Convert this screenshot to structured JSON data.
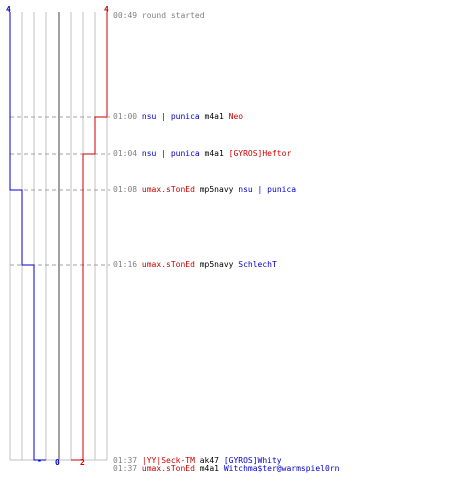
{
  "colors": {
    "team_a": "#0000cc",
    "team_b": "#cc0000",
    "timestamp": "#808080",
    "grid": "#c0c0c0",
    "center": "#808080",
    "connector": "#a0a0a0"
  },
  "score_top": {
    "team_a": "4",
    "team_b": "4"
  },
  "score_bottom": {
    "team_a": "0",
    "team_b": "2",
    "team_a_mark": "-"
  },
  "events": [
    {
      "time": "00:49",
      "parts": [
        {
          "text": "round started",
          "color": "gray"
        }
      ]
    },
    {
      "time": "01:00",
      "parts": [
        {
          "text": "nsu | punica",
          "color": "blue"
        },
        {
          "text": "m4a1",
          "color": "black"
        },
        {
          "text": "Neo",
          "color": "red"
        }
      ]
    },
    {
      "time": "01:04",
      "parts": [
        {
          "text": "nsu | punica",
          "color": "blue"
        },
        {
          "text": "m4a1",
          "color": "black"
        },
        {
          "text": "[GYROS]Heftor",
          "color": "red"
        }
      ]
    },
    {
      "time": "01:08",
      "parts": [
        {
          "text": "umax.sTonEd",
          "color": "red"
        },
        {
          "text": "mp5navy",
          "color": "black"
        },
        {
          "text": "nsu | punica",
          "color": "blue"
        }
      ]
    },
    {
      "time": "01:16",
      "parts": [
        {
          "text": "umax.sTonEd",
          "color": "red"
        },
        {
          "text": "mp5navy",
          "color": "black"
        },
        {
          "text": "SchlechT",
          "color": "blue"
        }
      ]
    },
    {
      "time": "01:37",
      "parts": [
        {
          "text": "|YY|Seck-TM",
          "color": "red"
        },
        {
          "text": "ak47",
          "color": "black"
        },
        {
          "text": "[GYROS]Whity",
          "color": "blue"
        }
      ]
    },
    {
      "time": "01:37",
      "parts": [
        {
          "text": "umax.sTonEd",
          "color": "red"
        },
        {
          "text": "m4a1",
          "color": "black"
        },
        {
          "text": "Witchma$ter@warmspiel0rn",
          "color": "blue"
        }
      ]
    }
  ]
}
